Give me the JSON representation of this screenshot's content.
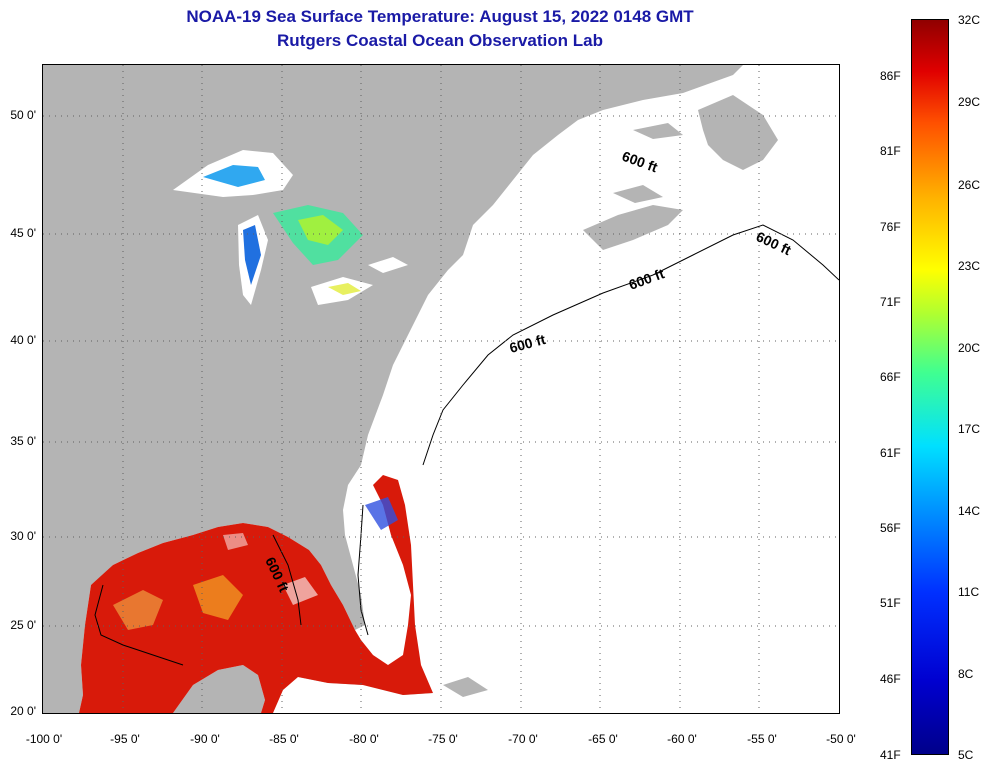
{
  "title": {
    "line1": "NOAA-19 Sea Surface Temperature:  August 15, 2022 0148 GMT",
    "line2": "Rutgers Coastal Ocean Observation Lab"
  },
  "axes": {
    "lat_labels": [
      "50 0'",
      "45 0'",
      "40 0'",
      "35 0'",
      "30 0'",
      "25 0'",
      "20 0'"
    ],
    "lat_values": [
      50,
      45,
      40,
      35,
      30,
      25,
      20
    ],
    "lon_labels": [
      "-100 0'",
      "-95 0'",
      "-90 0'",
      "-85 0'",
      "-80 0'",
      "-75 0'",
      "-70 0'",
      "-65 0'",
      "-60 0'",
      "-55 0'",
      "-50 0'"
    ],
    "lon_values": [
      -100,
      -95,
      -90,
      -85,
      -80,
      -75,
      -70,
      -65,
      -60,
      -55,
      -50
    ]
  },
  "isobath_label": "600 ft",
  "isobath_labels": [
    "600 ft",
    "600 ft",
    "600 ft",
    "600 ft",
    "600 ft"
  ],
  "colorbar": {
    "fahrenheit": [
      "86F",
      "81F",
      "76F",
      "71F",
      "66F",
      "61F",
      "56F",
      "51F",
      "46F",
      "41F"
    ],
    "celsius": [
      "32C",
      "29C",
      "26C",
      "23C",
      "20C",
      "17C",
      "14C",
      "11C",
      "8C",
      "5C"
    ]
  },
  "colors": {
    "land": "#b4b4b4",
    "ocean_no_data": "#ffffff",
    "warm_sst": "#d81a0a",
    "title": "#1a1aa6"
  }
}
